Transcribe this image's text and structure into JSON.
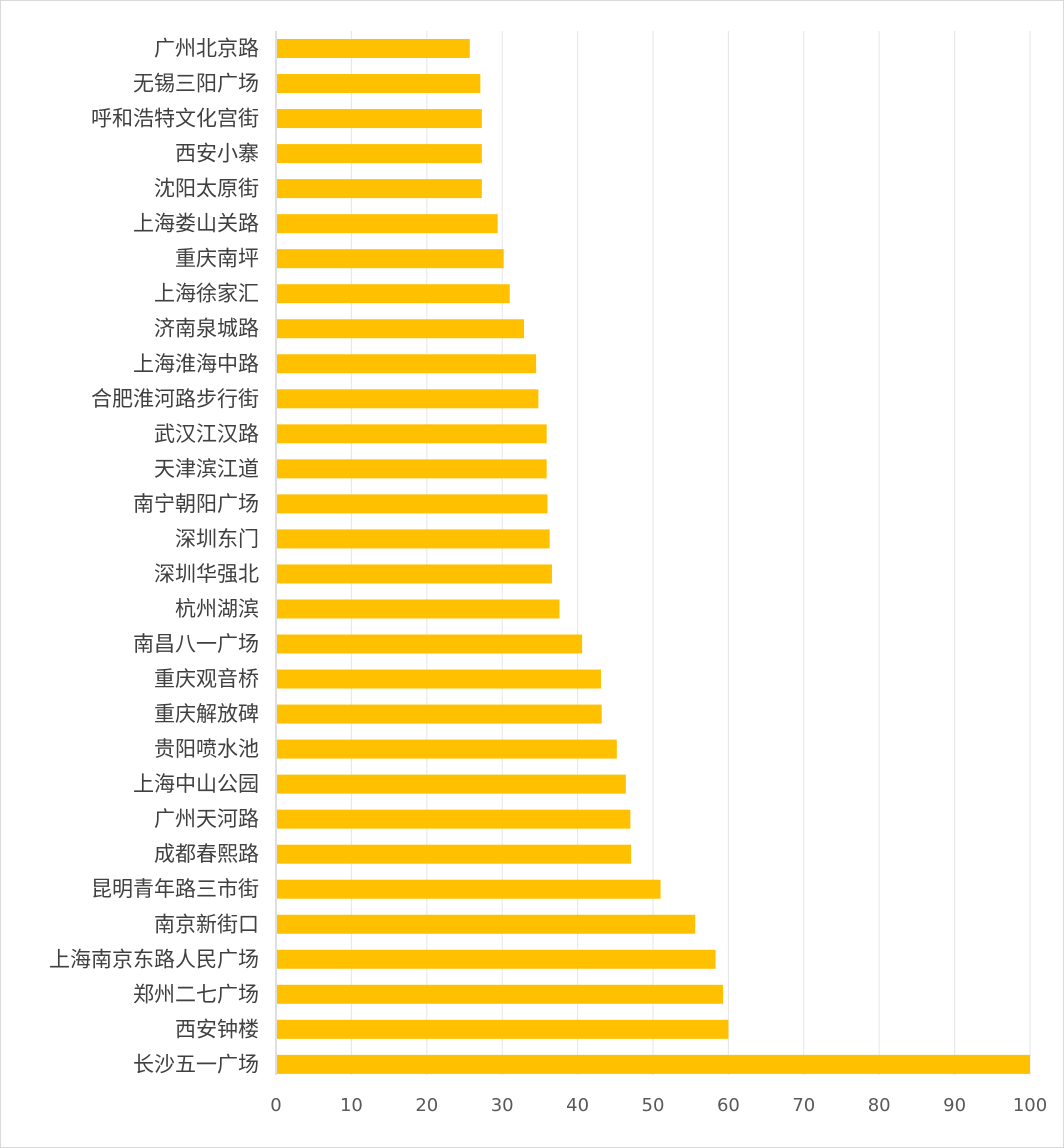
{
  "chart_data": {
    "type": "bar",
    "orientation": "horizontal",
    "title": "",
    "xlabel": "",
    "ylabel": "",
    "xlim": [
      0,
      100
    ],
    "x_ticks": [
      0,
      10,
      20,
      30,
      40,
      50,
      60,
      70,
      80,
      90,
      100
    ],
    "grid": "vertical",
    "legend": "none",
    "bar_color": "#FFC000",
    "categories": [
      "广州北京路",
      "无锡三阳广场",
      "呼和浩特文化宫街",
      "西安小寨",
      "沈阳太原街",
      "上海娄山关路",
      "重庆南坪",
      "上海徐家汇",
      "济南泉城路",
      "上海淮海中路",
      "合肥淮河路步行街",
      "武汉江汉路",
      "天津滨江道",
      "南宁朝阳广场",
      "深圳东门",
      "深圳华强北",
      "杭州湖滨",
      "南昌八一广场",
      "重庆观音桥",
      "重庆解放碑",
      "贵阳喷水池",
      "上海中山公园",
      "广州天河路",
      "成都春熙路",
      "昆明青年路三市街",
      "南京新街口",
      "上海南京东路人民广场",
      "郑州二七广场",
      "西安钟楼",
      "长沙五一广场"
    ],
    "values": [
      25.7,
      27.1,
      27.3,
      27.3,
      27.3,
      29.4,
      30.2,
      31.0,
      32.9,
      34.5,
      34.8,
      35.9,
      35.9,
      36.0,
      36.3,
      36.6,
      37.6,
      40.6,
      43.1,
      43.2,
      45.2,
      46.4,
      47.0,
      47.1,
      51.0,
      55.6,
      58.3,
      59.3,
      60.0,
      100.0
    ]
  }
}
